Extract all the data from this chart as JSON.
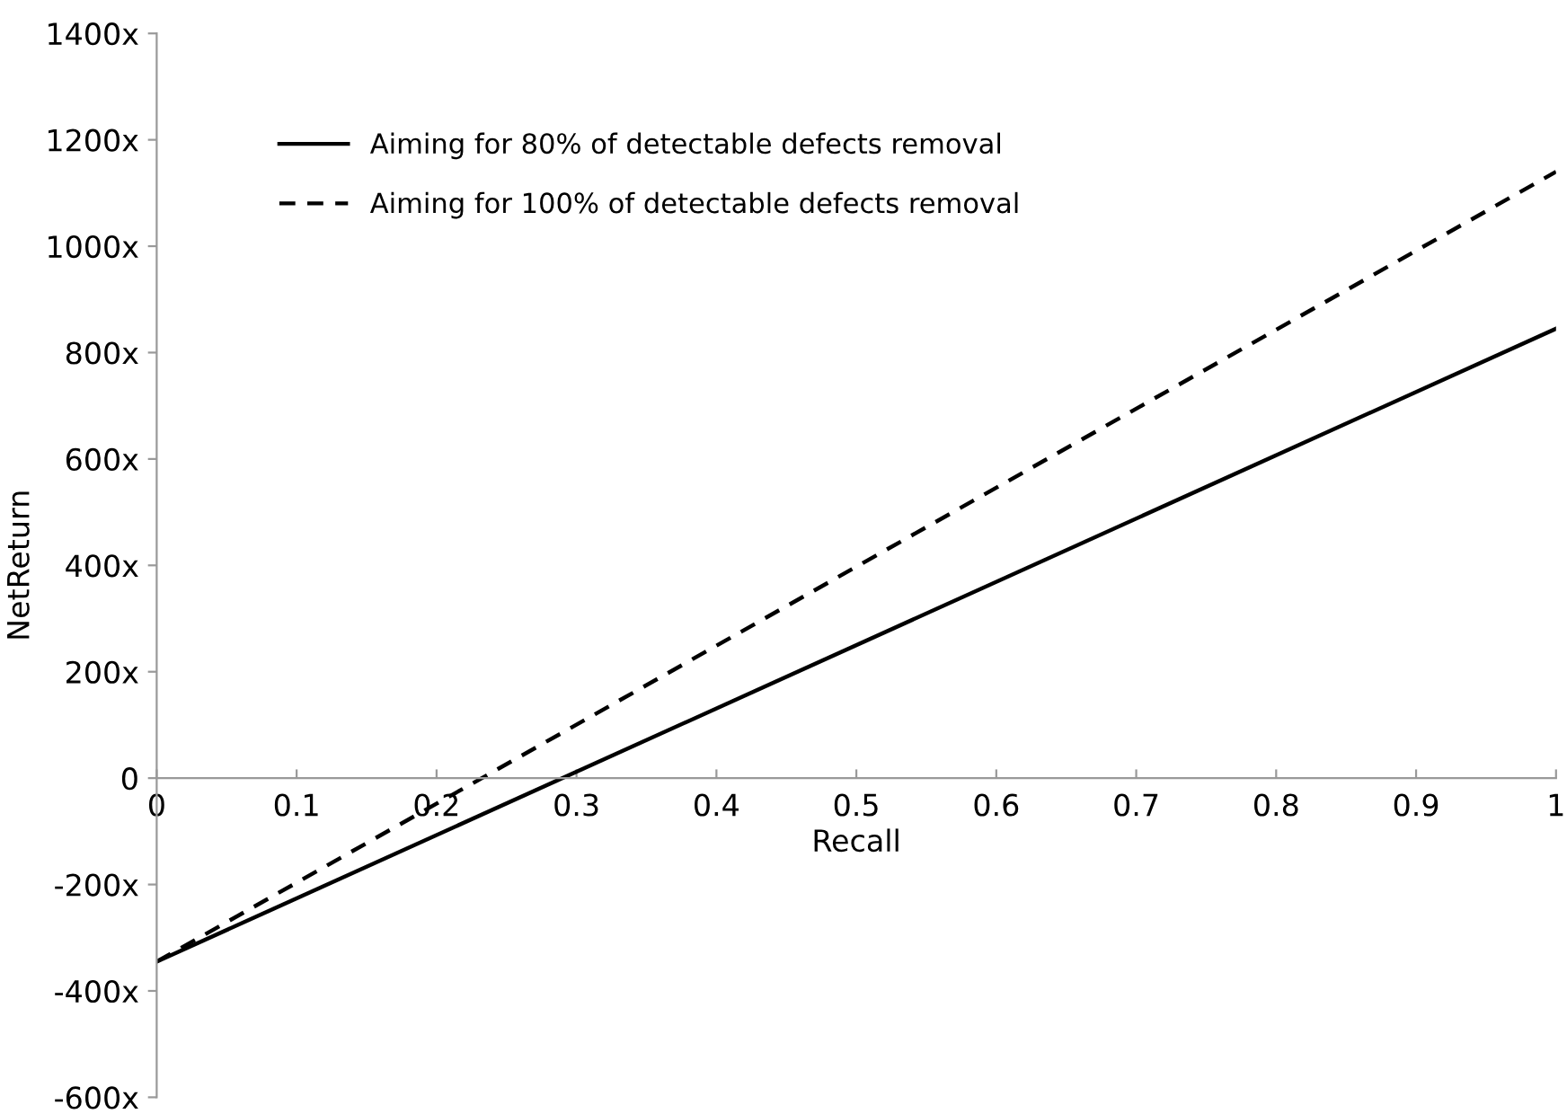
{
  "chart_data": {
    "type": "line",
    "xlabel": "Recall",
    "ylabel": "NetReturn",
    "x": [
      0,
      1
    ],
    "series": [
      {
        "name": "Aiming for 80% of detectable defects removal",
        "color": "#000000",
        "values": [
          -345,
          845
        ],
        "line_style": "solid"
      },
      {
        "name": "Aiming for 100% of detectable defects removal",
        "color": "#000000",
        "values": [
          -345,
          1140
        ],
        "line_style": "dashed"
      }
    ],
    "xlim": [
      0,
      1
    ],
    "xticks": [
      0,
      0.1,
      0.2,
      0.3,
      0.4,
      0.5,
      0.6,
      0.7,
      0.8,
      0.9,
      1
    ],
    "ylim": [
      -600,
      1400
    ],
    "yticks": [
      {
        "value": -600,
        "label": "-600x"
      },
      {
        "value": -400,
        "label": "-400x"
      },
      {
        "value": -200,
        "label": "-200x"
      },
      0,
      {
        "value": 200,
        "label": "200x"
      },
      {
        "value": 400,
        "label": "400x"
      },
      {
        "value": 600,
        "label": "600x"
      },
      {
        "value": 800,
        "label": "800x"
      },
      {
        "value": 1000,
        "label": "1000x"
      },
      {
        "value": 1200,
        "label": "1200x"
      },
      {
        "value": 1400,
        "label": "1400x"
      }
    ],
    "grid": false,
    "legend": "top left",
    "marker": "none"
  }
}
